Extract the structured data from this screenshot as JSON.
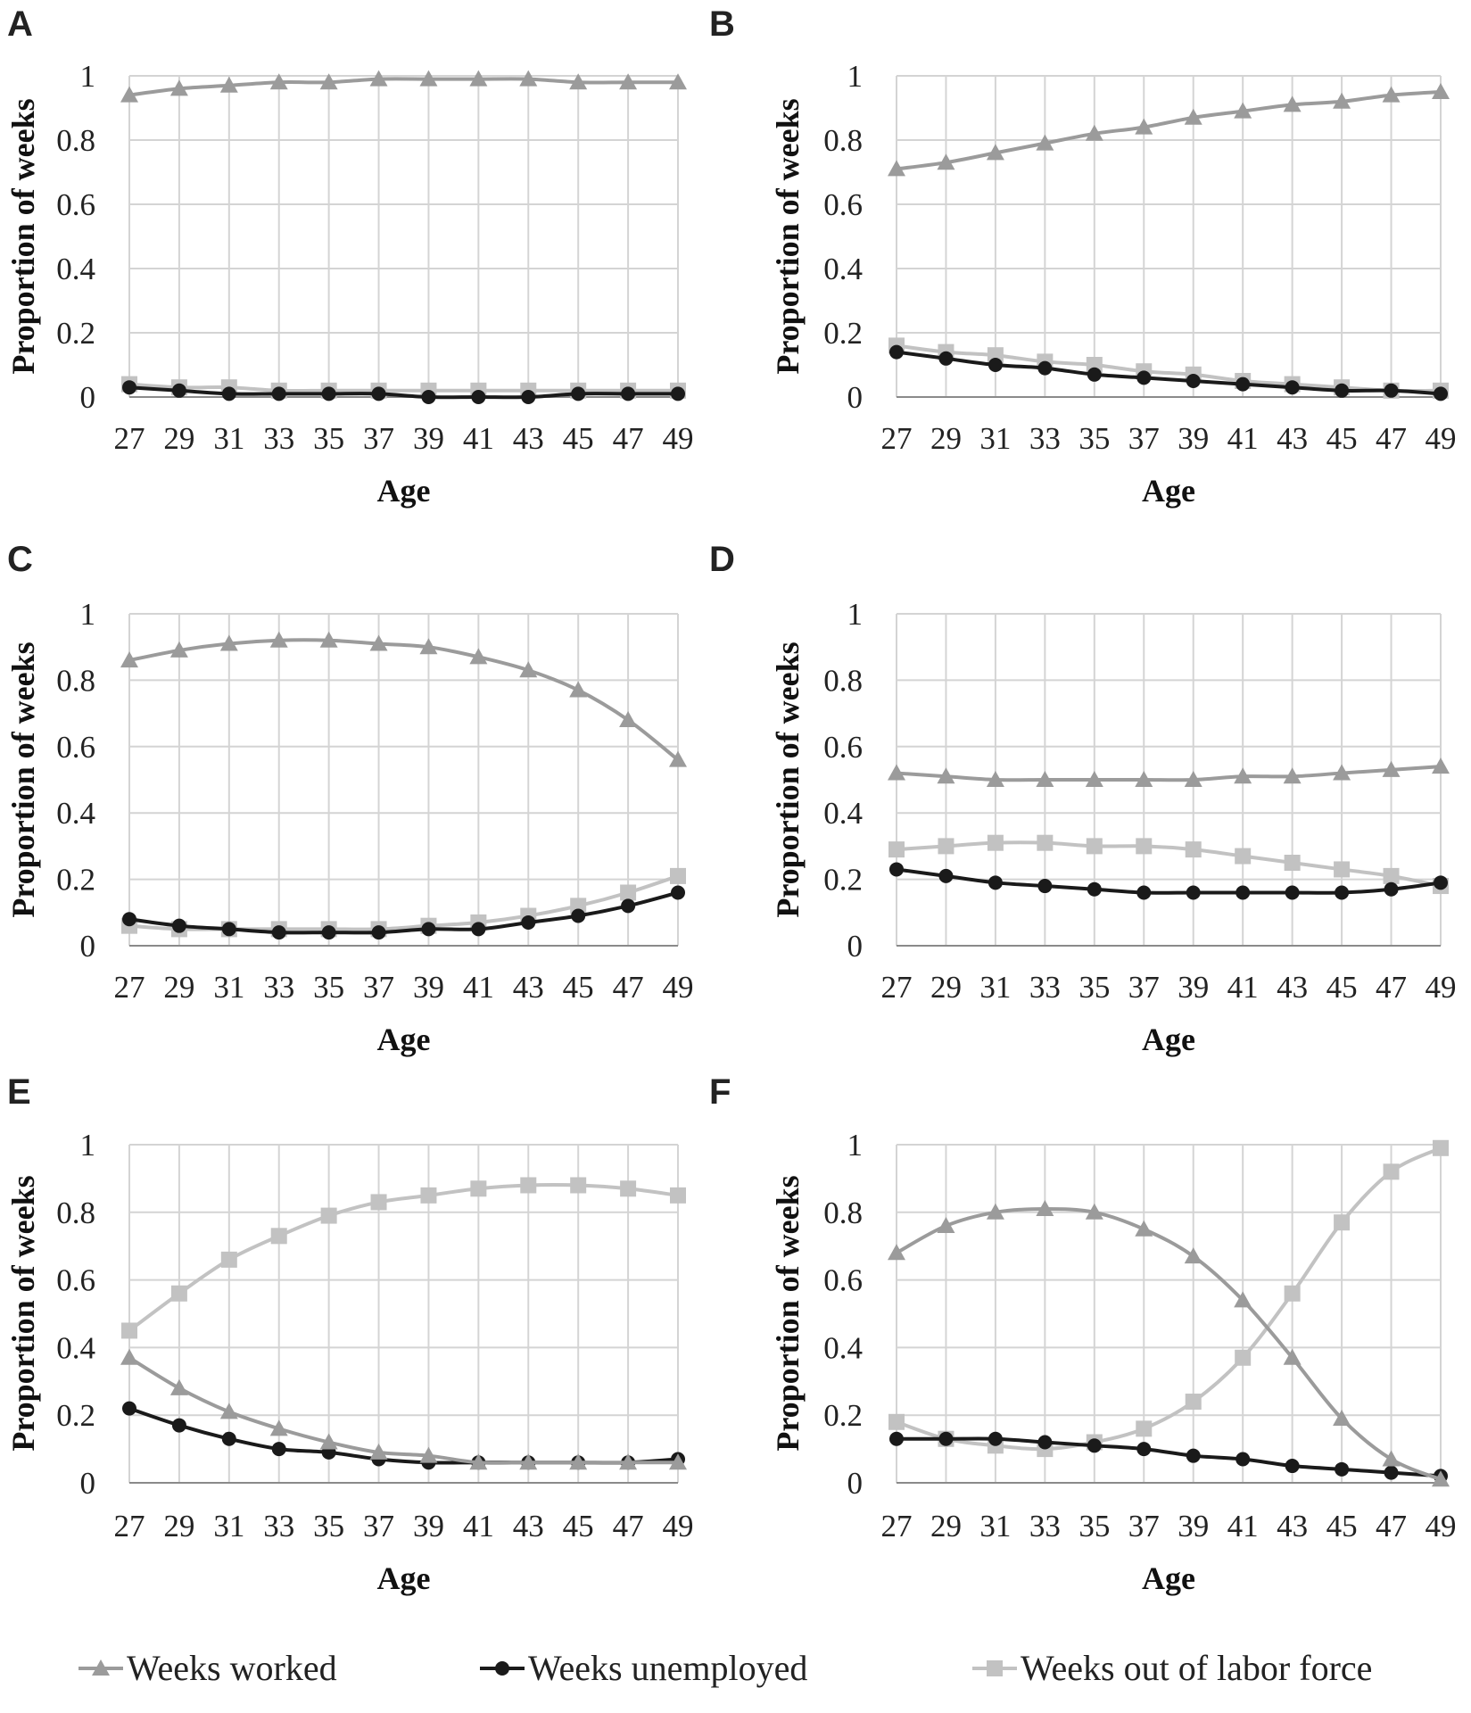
{
  "colors": {
    "worked": "#9b9b9b",
    "unemployed": "#1a1a1a",
    "out_of_labor_force": "#c2c2c2",
    "grid": "#d4d4d4",
    "axis": "#8a8a8a"
  },
  "legend": [
    {
      "series": "worked",
      "label": "Weeks worked",
      "marker": "triangle"
    },
    {
      "series": "unemployed",
      "label": "Weeks unemployed",
      "marker": "circle"
    },
    {
      "series": "out_of_labor_force",
      "label": "Weeks out of labor force",
      "marker": "square"
    }
  ],
  "chart_data": [
    {
      "panel": "A",
      "type": "line",
      "x": [
        27,
        29,
        31,
        33,
        35,
        37,
        39,
        41,
        43,
        45,
        47,
        49
      ],
      "xlabel": "Age",
      "ylabel": "Proportion of weeks",
      "ylim": [
        0,
        1
      ],
      "yticks": [
        "0",
        "0.2",
        "0.4",
        "0.6",
        "0.8",
        "1"
      ],
      "grid": true,
      "series": [
        {
          "key": "worked",
          "name": "Weeks worked",
          "values": [
            0.94,
            0.96,
            0.97,
            0.98,
            0.98,
            0.99,
            0.99,
            0.99,
            0.99,
            0.98,
            0.98,
            0.98
          ]
        },
        {
          "key": "unemployed",
          "name": "Weeks unemployed",
          "values": [
            0.03,
            0.02,
            0.01,
            0.01,
            0.01,
            0.01,
            0.0,
            0.0,
            0.0,
            0.01,
            0.01,
            0.01
          ]
        },
        {
          "key": "out_of_labor_force",
          "name": "Weeks out of labor force",
          "values": [
            0.04,
            0.03,
            0.03,
            0.02,
            0.02,
            0.02,
            0.02,
            0.02,
            0.02,
            0.02,
            0.02,
            0.02
          ]
        }
      ]
    },
    {
      "panel": "B",
      "type": "line",
      "x": [
        27,
        29,
        31,
        33,
        35,
        37,
        39,
        41,
        43,
        45,
        47,
        49
      ],
      "xlabel": "Age",
      "ylabel": "Proportion of weeks",
      "ylim": [
        0,
        1
      ],
      "yticks": [
        "0",
        "0.2",
        "0.4",
        "0.6",
        "0.8",
        "1"
      ],
      "grid": true,
      "series": [
        {
          "key": "worked",
          "name": "Weeks worked",
          "values": [
            0.71,
            0.73,
            0.76,
            0.79,
            0.82,
            0.84,
            0.87,
            0.89,
            0.91,
            0.92,
            0.94,
            0.95
          ]
        },
        {
          "key": "unemployed",
          "name": "Weeks unemployed",
          "values": [
            0.14,
            0.12,
            0.1,
            0.09,
            0.07,
            0.06,
            0.05,
            0.04,
            0.03,
            0.02,
            0.02,
            0.01
          ]
        },
        {
          "key": "out_of_labor_force",
          "name": "Weeks out of labor force",
          "values": [
            0.16,
            0.14,
            0.13,
            0.11,
            0.1,
            0.08,
            0.07,
            0.05,
            0.04,
            0.03,
            0.02,
            0.02
          ]
        }
      ]
    },
    {
      "panel": "C",
      "type": "line",
      "x": [
        27,
        29,
        31,
        33,
        35,
        37,
        39,
        41,
        43,
        45,
        47,
        49
      ],
      "xlabel": "Age",
      "ylabel": "Proportion of weeks",
      "ylim": [
        0,
        1
      ],
      "yticks": [
        "0",
        "0.2",
        "0.4",
        "0.6",
        "0.8",
        "1"
      ],
      "grid": true,
      "series": [
        {
          "key": "worked",
          "name": "Weeks worked",
          "values": [
            0.86,
            0.89,
            0.91,
            0.92,
            0.92,
            0.91,
            0.9,
            0.87,
            0.83,
            0.77,
            0.68,
            0.56
          ]
        },
        {
          "key": "unemployed",
          "name": "Weeks unemployed",
          "values": [
            0.08,
            0.06,
            0.05,
            0.04,
            0.04,
            0.04,
            0.05,
            0.05,
            0.07,
            0.09,
            0.12,
            0.16
          ]
        },
        {
          "key": "out_of_labor_force",
          "name": "Weeks out of labor force",
          "values": [
            0.06,
            0.05,
            0.05,
            0.05,
            0.05,
            0.05,
            0.06,
            0.07,
            0.09,
            0.12,
            0.16,
            0.21
          ]
        }
      ]
    },
    {
      "panel": "D",
      "type": "line",
      "x": [
        27,
        29,
        31,
        33,
        35,
        37,
        39,
        41,
        43,
        45,
        47,
        49
      ],
      "xlabel": "Age",
      "ylabel": "Proportion of weeks",
      "ylim": [
        0,
        1
      ],
      "yticks": [
        "0",
        "0.2",
        "0.4",
        "0.6",
        "0.8",
        "1"
      ],
      "grid": true,
      "series": [
        {
          "key": "worked",
          "name": "Weeks worked",
          "values": [
            0.52,
            0.51,
            0.5,
            0.5,
            0.5,
            0.5,
            0.5,
            0.51,
            0.51,
            0.52,
            0.53,
            0.54
          ]
        },
        {
          "key": "unemployed",
          "name": "Weeks unemployed",
          "values": [
            0.23,
            0.21,
            0.19,
            0.18,
            0.17,
            0.16,
            0.16,
            0.16,
            0.16,
            0.16,
            0.17,
            0.19
          ]
        },
        {
          "key": "out_of_labor_force",
          "name": "Weeks out of labor force",
          "values": [
            0.29,
            0.3,
            0.31,
            0.31,
            0.3,
            0.3,
            0.29,
            0.27,
            0.25,
            0.23,
            0.21,
            0.18
          ]
        }
      ]
    },
    {
      "panel": "E",
      "type": "line",
      "x": [
        27,
        29,
        31,
        33,
        35,
        37,
        39,
        41,
        43,
        45,
        47,
        49
      ],
      "xlabel": "Age",
      "ylabel": "Proportion of weeks",
      "ylim": [
        0,
        1
      ],
      "yticks": [
        "0",
        "0.2",
        "0.4",
        "0.6",
        "0.8",
        "1"
      ],
      "grid": true,
      "series": [
        {
          "key": "worked",
          "name": "Weeks worked",
          "values": [
            0.37,
            0.28,
            0.21,
            0.16,
            0.12,
            0.09,
            0.08,
            0.06,
            0.06,
            0.06,
            0.06,
            0.06
          ]
        },
        {
          "key": "unemployed",
          "name": "Weeks unemployed",
          "values": [
            0.22,
            0.17,
            0.13,
            0.1,
            0.09,
            0.07,
            0.06,
            0.06,
            0.06,
            0.06,
            0.06,
            0.07
          ]
        },
        {
          "key": "out_of_labor_force",
          "name": "Weeks out of labor force",
          "values": [
            0.45,
            0.56,
            0.66,
            0.73,
            0.79,
            0.83,
            0.85,
            0.87,
            0.88,
            0.88,
            0.87,
            0.85
          ]
        }
      ]
    },
    {
      "panel": "F",
      "type": "line",
      "x": [
        27,
        29,
        31,
        33,
        35,
        37,
        39,
        41,
        43,
        45,
        47,
        49
      ],
      "xlabel": "Age",
      "ylabel": "Proportion of weeks",
      "ylim": [
        0,
        1
      ],
      "yticks": [
        "0",
        "0.2",
        "0.4",
        "0.6",
        "0.8",
        "1"
      ],
      "grid": true,
      "series": [
        {
          "key": "worked",
          "name": "Weeks worked",
          "values": [
            0.68,
            0.76,
            0.8,
            0.81,
            0.8,
            0.75,
            0.67,
            0.54,
            0.37,
            0.19,
            0.07,
            0.01
          ]
        },
        {
          "key": "unemployed",
          "name": "Weeks unemployed",
          "values": [
            0.13,
            0.13,
            0.13,
            0.12,
            0.11,
            0.1,
            0.08,
            0.07,
            0.05,
            0.04,
            0.03,
            0.02
          ]
        },
        {
          "key": "out_of_labor_force",
          "name": "Weeks out of labor force",
          "values": [
            0.18,
            0.13,
            0.11,
            0.1,
            0.12,
            0.16,
            0.24,
            0.37,
            0.56,
            0.77,
            0.92,
            0.99
          ]
        }
      ]
    }
  ]
}
